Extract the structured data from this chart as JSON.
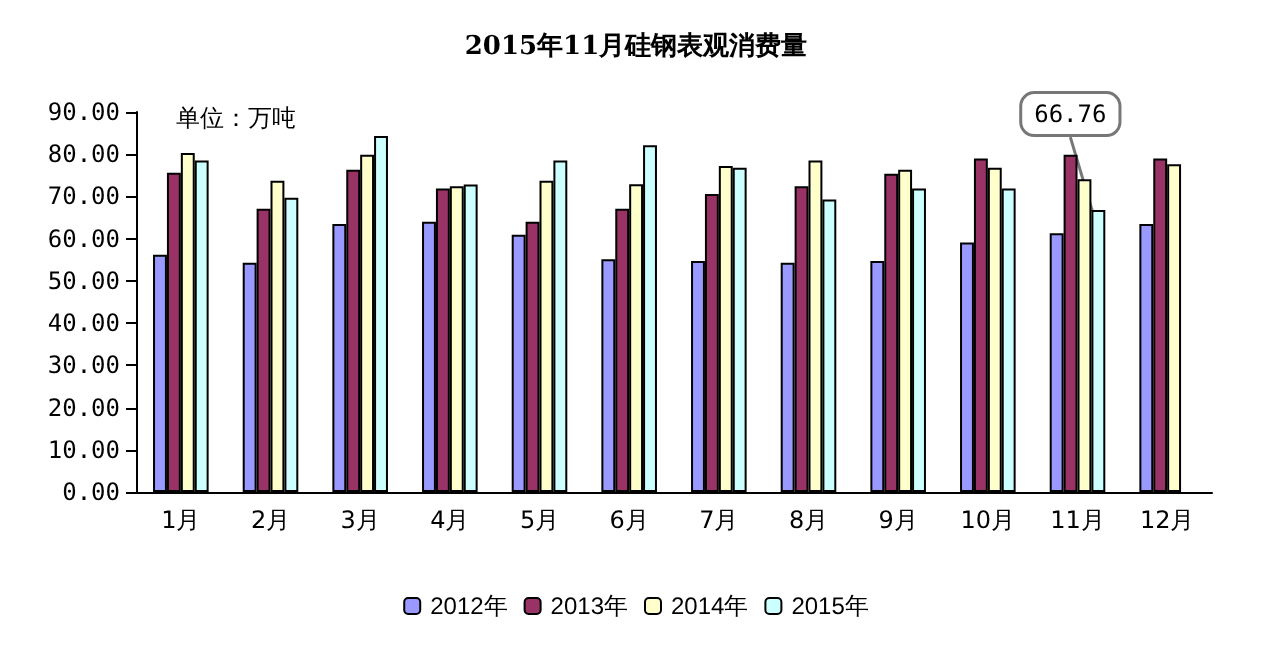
{
  "chart_data": {
    "type": "bar",
    "title": "2015年11月硅钢表观消费量",
    "annotations": [
      "单位：万吨"
    ],
    "categories": [
      "1月",
      "2月",
      "3月",
      "4月",
      "5月",
      "6月",
      "7月",
      "8月",
      "9月",
      "10月",
      "11月",
      "12月"
    ],
    "series": [
      {
        "name": "2012年",
        "color": "#9999ff",
        "values": [
          56.2,
          54.3,
          63.5,
          64.0,
          60.9,
          55.1,
          54.7,
          54.3,
          54.7,
          59.1,
          61.3,
          63.5
        ]
      },
      {
        "name": "2013年",
        "color": "#993366",
        "values": [
          75.6,
          67.1,
          76.3,
          71.9,
          64.0,
          67.1,
          70.6,
          72.4,
          75.4,
          79.0,
          79.9,
          79.0
        ]
      },
      {
        "name": "2014年",
        "color": "#ffffcc",
        "values": [
          80.3,
          73.7,
          79.9,
          72.4,
          73.7,
          72.9,
          77.2,
          78.5,
          76.3,
          76.8,
          74.1,
          77.6
        ]
      },
      {
        "name": "2015年",
        "color": "#ccffff",
        "values": [
          78.5,
          69.7,
          84.3,
          72.8,
          78.5,
          82.1,
          76.8,
          69.3,
          71.9,
          71.9,
          66.76,
          null
        ],
        "value_labels": [
          null,
          null,
          null,
          null,
          null,
          null,
          null,
          null,
          null,
          null,
          "66.76",
          null
        ]
      }
    ],
    "ylim": [
      0,
      90
    ],
    "yticks": [
      {
        "value": 0,
        "label": "0.00"
      },
      {
        "value": 10,
        "label": "10.00"
      },
      {
        "value": 20,
        "label": "20.00"
      },
      {
        "value": 30,
        "label": "30.00"
      },
      {
        "value": 40,
        "label": "40.00"
      },
      {
        "value": 50,
        "label": "50.00"
      },
      {
        "value": 60,
        "label": "60.00"
      },
      {
        "value": 70,
        "label": "70.00"
      },
      {
        "value": 80,
        "label": "80.00"
      },
      {
        "value": 90,
        "label": "90.00"
      }
    ],
    "grid": false,
    "legend": "bottom"
  }
}
